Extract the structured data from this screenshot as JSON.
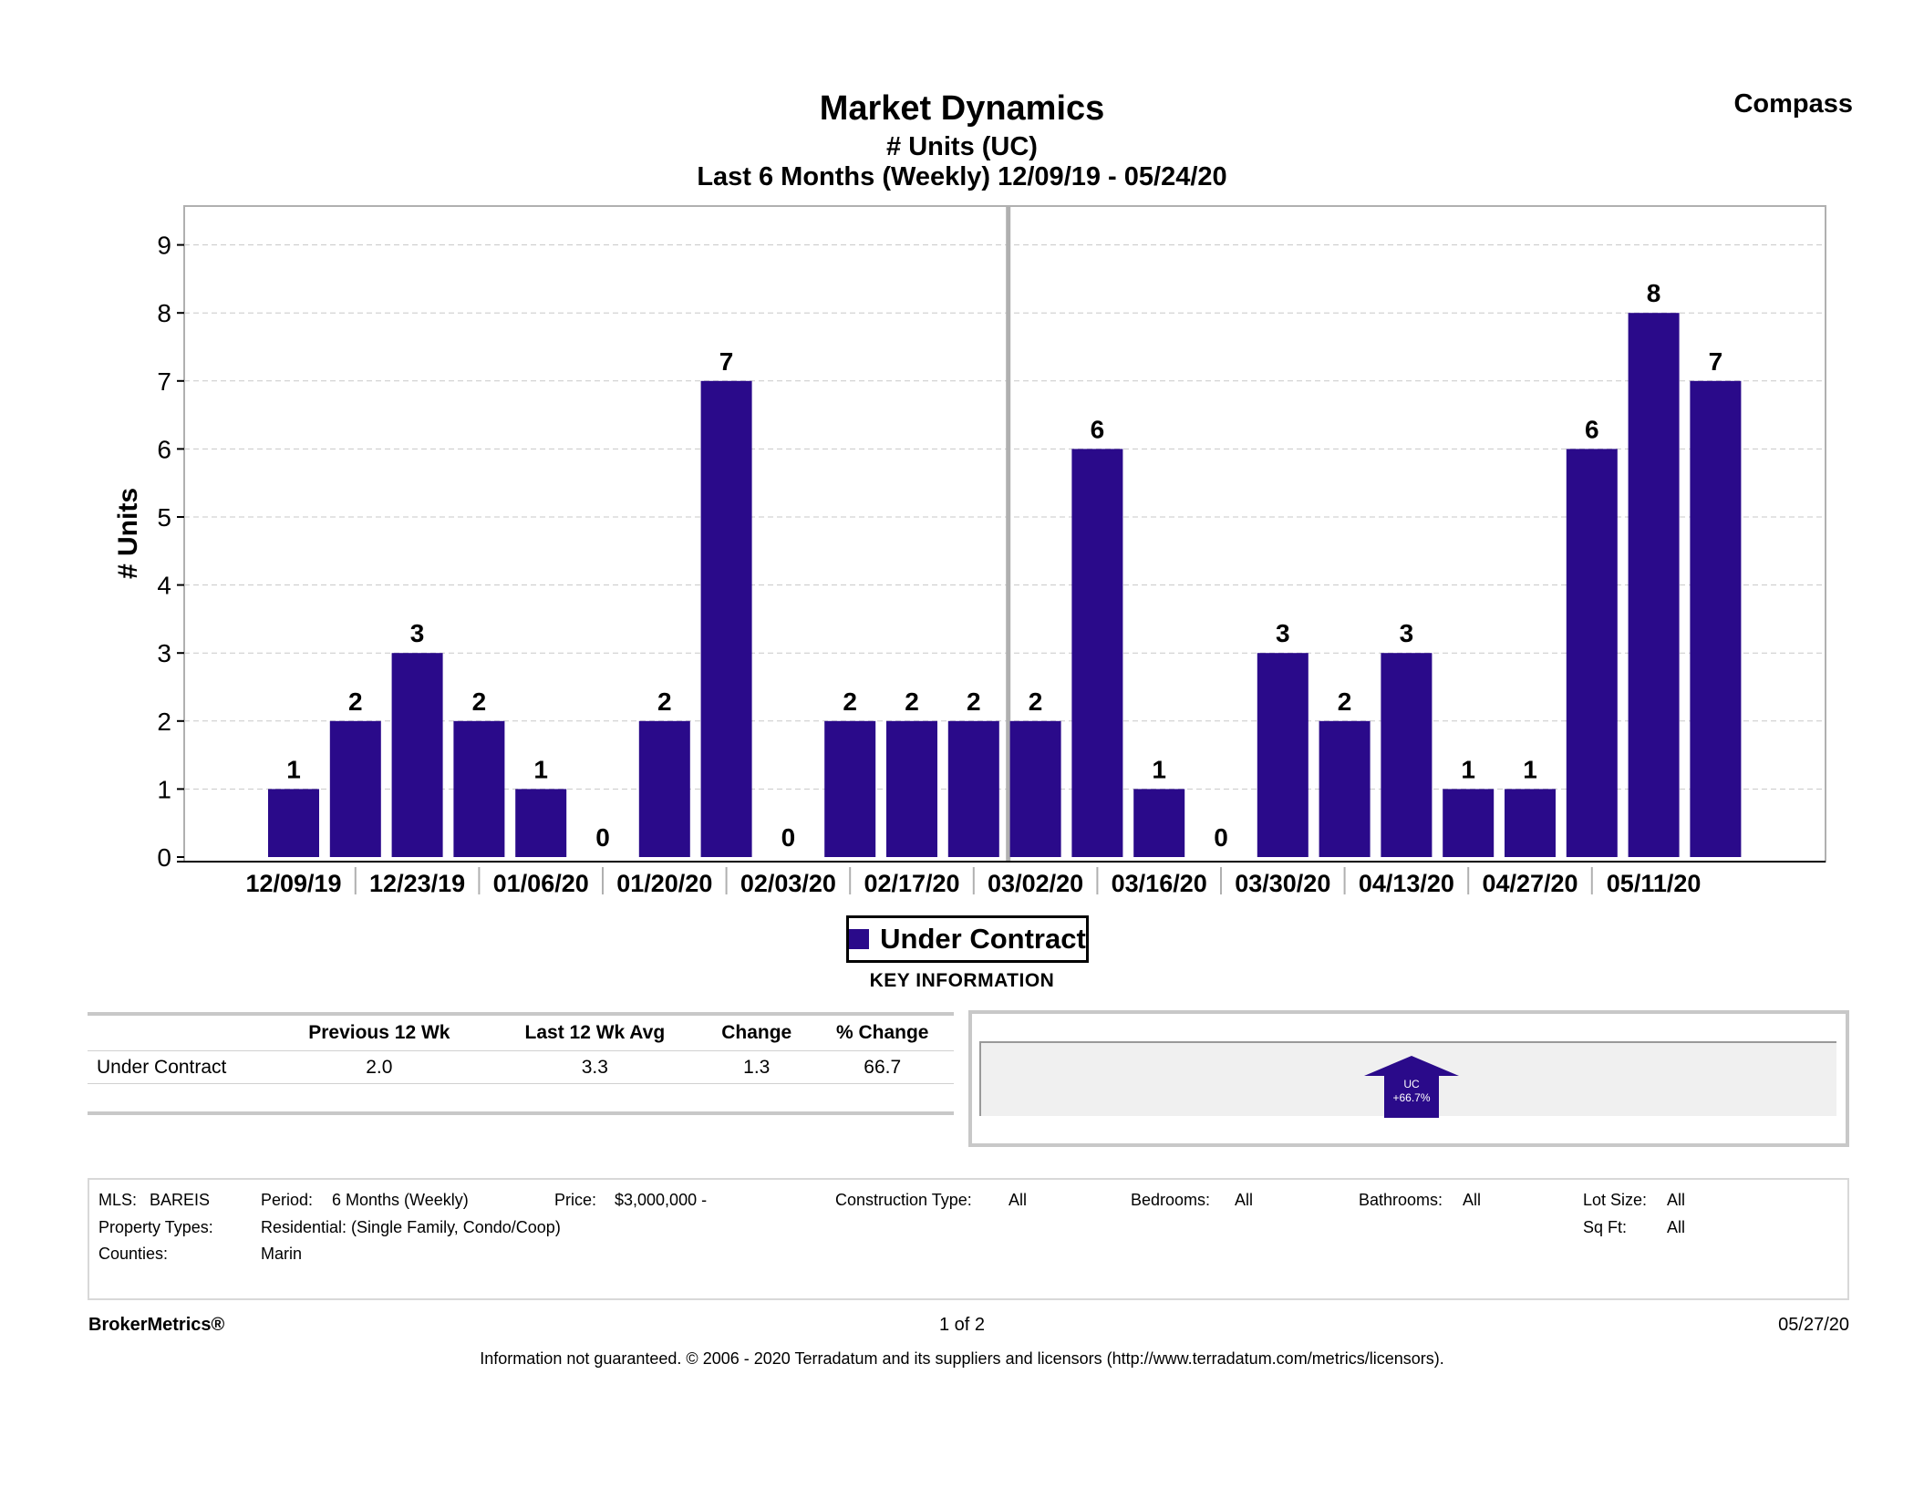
{
  "header": {
    "title": "Market Dynamics",
    "subtitle": "# Units (UC)",
    "period": "Last 6 Months (Weekly) 12/09/19 - 05/24/20",
    "brand": "Compass"
  },
  "chart_data": {
    "type": "bar",
    "ylabel": "# Units",
    "ylim": [
      0,
      9
    ],
    "yticks": [
      0,
      1,
      2,
      3,
      4,
      5,
      6,
      7,
      8,
      9
    ],
    "grid": true,
    "legend_position": "bottom",
    "bar_color": "#2a0a8a",
    "series": [
      {
        "name": "Under Contract",
        "values": [
          1,
          2,
          3,
          2,
          1,
          0,
          2,
          7,
          0,
          2,
          2,
          2,
          2,
          6,
          1,
          0,
          3,
          2,
          3,
          1,
          1,
          6,
          8,
          7
        ]
      }
    ],
    "xticks": [
      "12/09/19",
      "12/23/19",
      "01/06/20",
      "01/20/20",
      "02/03/20",
      "02/17/20",
      "03/02/20",
      "03/16/20",
      "03/30/20",
      "04/13/20",
      "04/27/20",
      "05/11/20"
    ]
  },
  "legend": {
    "label": "Under Contract",
    "section_title": "KEY INFORMATION"
  },
  "stats": {
    "headers": [
      "",
      "Previous 12 Wk",
      "Last 12 Wk Avg",
      "Change",
      "% Change"
    ],
    "rows": [
      [
        "Under Contract",
        "2.0",
        "3.3",
        "1.3",
        "66.7"
      ]
    ]
  },
  "indicator": {
    "label": "UC",
    "value": "+66.7%",
    "color": "#2a0a8a"
  },
  "filters": {
    "mls_label": "MLS:",
    "mls_value": "BAREIS",
    "period_label": "Period:",
    "period_value": "6 Months (Weekly)",
    "price_label": "Price:",
    "price_value": "$3,000,000 -",
    "construction_label": "Construction Type:",
    "construction_value": "All",
    "bedrooms_label": "Bedrooms:",
    "bedrooms_value": "All",
    "bathrooms_label": "Bathrooms:",
    "bathrooms_value": "All",
    "lot_label": "Lot Size:",
    "lot_value": "All",
    "types_label": "Property Types:",
    "types_value": "Residential: (Single Family, Condo/Coop)",
    "sqft_label": "Sq Ft:",
    "sqft_value": "All",
    "counties_label": "Counties:",
    "counties_value": "Marin"
  },
  "footer": {
    "brand": "BrokerMetrics®",
    "page": "1 of 2",
    "date": "05/27/20",
    "note": "Information not guaranteed.  © 2006 - 2020 Terradatum and its suppliers and licensors (http://www.terradatum.com/metrics/licensors)."
  }
}
